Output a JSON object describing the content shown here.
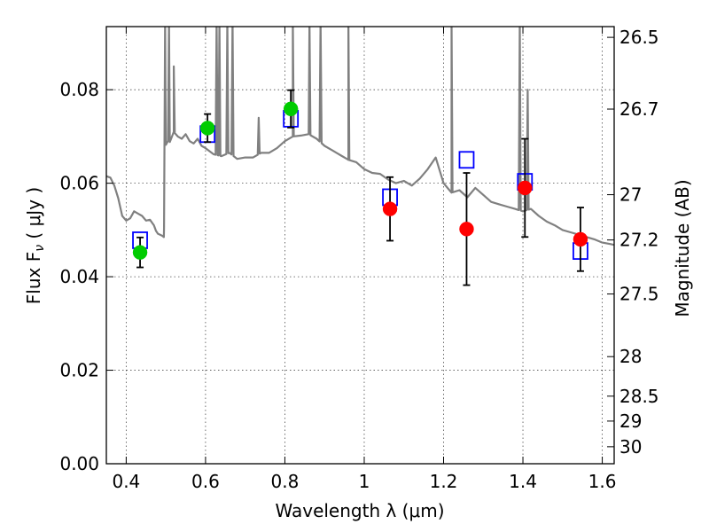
{
  "chart_data": {
    "type": "scatter",
    "xlabel": "Wavelength  λ (μm)",
    "ylabel": "Flux  F",
    "ylabel_sub": "ν",
    "ylabel_unit": "  ( μJy )",
    "y2label": "Magnitude (AB)",
    "xlim": [
      0.35,
      1.63
    ],
    "ylim": [
      0.0,
      0.0935
    ],
    "grid": true,
    "x_ticks": [
      0.4,
      0.6,
      0.8,
      1.0,
      1.2,
      1.4,
      1.6
    ],
    "x_tick_labels": [
      "0.4",
      "0.6",
      "0.8",
      "1",
      "1.2",
      "1.4",
      "1.6"
    ],
    "y_ticks": [
      0.0,
      0.02,
      0.04,
      0.06,
      0.08
    ],
    "y_tick_labels": [
      "0.00",
      "0.02",
      "0.04",
      "0.06",
      "0.08"
    ],
    "mag_ticks": [
      26.5,
      26.7,
      27,
      27.2,
      27.5,
      28,
      28.5,
      29,
      30
    ],
    "mag_tick_labels": [
      "26.5",
      "26.7",
      "27",
      "27.2",
      "27.5",
      "28",
      "28.5",
      "29",
      "30"
    ],
    "series": [
      {
        "type": "line",
        "color": "#808080",
        "x": [
          0.35,
          0.36,
          0.37,
          0.38,
          0.39,
          0.4,
          0.41,
          0.42,
          0.43,
          0.44,
          0.45,
          0.46,
          0.47,
          0.475,
          0.48,
          0.485,
          0.49,
          0.495,
          0.5,
          0.505,
          0.51,
          0.52,
          0.53,
          0.54,
          0.55,
          0.56,
          0.57,
          0.58,
          0.59,
          0.6,
          0.62,
          0.64,
          0.66,
          0.68,
          0.7,
          0.72,
          0.74,
          0.76,
          0.78,
          0.8,
          0.82,
          0.84,
          0.86,
          0.88,
          0.9,
          0.92,
          0.94,
          0.96,
          0.98,
          1.0,
          1.02,
          1.04,
          1.06,
          1.08,
          1.1,
          1.12,
          1.14,
          1.16,
          1.18,
          1.2,
          1.22,
          1.24,
          1.26,
          1.28,
          1.3,
          1.32,
          1.34,
          1.36,
          1.38,
          1.4,
          1.42,
          1.44,
          1.46,
          1.48,
          1.5,
          1.52,
          1.54,
          1.56,
          1.58,
          1.6,
          1.62,
          1.63
        ],
        "y": [
          0.0615,
          0.0612,
          0.0595,
          0.0568,
          0.053,
          0.052,
          0.0525,
          0.054,
          0.0535,
          0.053,
          0.052,
          0.0522,
          0.051,
          0.0498,
          0.0492,
          0.049,
          0.0488,
          0.0485,
          0.0682,
          0.069,
          0.0688,
          0.071,
          0.07,
          0.0695,
          0.0705,
          0.069,
          0.0685,
          0.0695,
          0.068,
          0.0675,
          0.0662,
          0.0658,
          0.0665,
          0.0652,
          0.0655,
          0.0655,
          0.0665,
          0.0665,
          0.0675,
          0.069,
          0.07,
          0.0702,
          0.0705,
          0.0695,
          0.068,
          0.067,
          0.066,
          0.065,
          0.0645,
          0.063,
          0.0622,
          0.062,
          0.0608,
          0.06,
          0.0605,
          0.0595,
          0.061,
          0.063,
          0.0655,
          0.06,
          0.058,
          0.0585,
          0.057,
          0.059,
          0.0575,
          0.056,
          0.0555,
          0.055,
          0.0545,
          0.054,
          0.0545,
          0.053,
          0.0518,
          0.051,
          0.05,
          0.0495,
          0.049,
          0.0485,
          0.048,
          0.0473,
          0.047,
          0.0468
        ],
        "spikes": [
          {
            "x": 0.498,
            "y": 0.095
          },
          {
            "x": 0.508,
            "y": 0.095
          },
          {
            "x": 0.52,
            "y": 0.085
          },
          {
            "x": 0.628,
            "y": 0.095
          },
          {
            "x": 0.635,
            "y": 0.095
          },
          {
            "x": 0.655,
            "y": 0.095
          },
          {
            "x": 0.668,
            "y": 0.095
          },
          {
            "x": 0.734,
            "y": 0.074
          },
          {
            "x": 0.82,
            "y": 0.095
          },
          {
            "x": 0.862,
            "y": 0.095
          },
          {
            "x": 0.89,
            "y": 0.095
          },
          {
            "x": 0.96,
            "y": 0.095
          },
          {
            "x": 1.22,
            "y": 0.095
          },
          {
            "x": 1.392,
            "y": 0.095
          },
          {
            "x": 1.412,
            "y": 0.08
          }
        ]
      },
      {
        "type": "scatter",
        "marker": "open-square",
        "color": "#0000ff",
        "x": [
          0.435,
          0.605,
          0.815,
          1.065,
          1.258,
          1.405,
          1.545
        ],
        "y": [
          0.0478,
          0.0705,
          0.0738,
          0.057,
          0.065,
          0.0603,
          0.0455
        ]
      },
      {
        "type": "scatter",
        "marker": "circle",
        "color": "#00cc00",
        "x": [
          0.435,
          0.605,
          0.815
        ],
        "y": [
          0.0452,
          0.0718,
          0.0759
        ],
        "yerr": [
          0.0032,
          0.003,
          0.004
        ]
      },
      {
        "type": "scatter",
        "marker": "circle",
        "color": "#ff0000",
        "x": [
          1.065,
          1.258,
          1.405,
          1.545
        ],
        "y": [
          0.0545,
          0.0502,
          0.059,
          0.048
        ],
        "yerr": [
          0.0068,
          0.012,
          0.0105,
          0.0068
        ]
      }
    ]
  }
}
